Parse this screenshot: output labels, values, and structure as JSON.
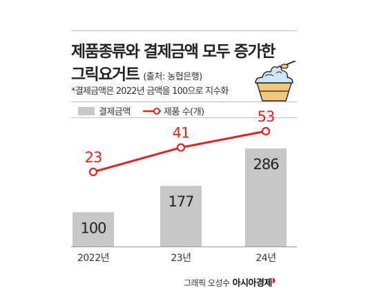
{
  "header": {
    "title_line1": "제품종류와 결제금액 모두 증가한",
    "title_line2": "그릭요거트",
    "source": "(출처: 농협은행)",
    "note": "*결제금액은 2022년 금액을 100으로 지수화"
  },
  "legend": {
    "bar_label": "결제금액",
    "line_label": "제품 수(개)"
  },
  "credit": {
    "text": "그래픽 오성수",
    "brand": "아시아경제"
  },
  "colors": {
    "bar": "#c7c7c7",
    "line": "#e0241f",
    "text": "#222222"
  },
  "icons": {
    "illustration": "yogurt-cup-icon"
  },
  "chart_data": {
    "type": "bar",
    "categories": [
      "2022년",
      "23년",
      "24년"
    ],
    "series": [
      {
        "name": "결제금액",
        "type": "bar",
        "values": [
          100,
          177,
          286
        ]
      },
      {
        "name": "제품 수(개)",
        "type": "line",
        "values": [
          23,
          41,
          53
        ]
      }
    ],
    "title": "제품종류와 결제금액 모두 증가한 그릭요거트",
    "xlabel": "",
    "ylabel": "",
    "ylim": [
      0,
      340
    ],
    "grid": false,
    "legend_position": "top-left"
  }
}
